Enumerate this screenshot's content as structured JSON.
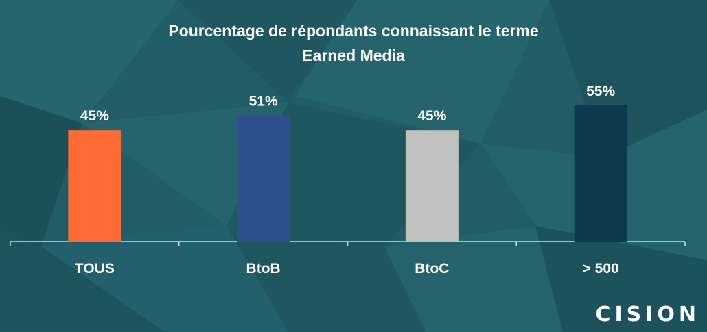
{
  "chart_data": {
    "type": "bar",
    "title_line1": "Pourcentage de répondants connaissant le terme",
    "title_line2": "Earned Media",
    "categories": [
      "TOUS",
      "BtoB",
      "BtoC",
      "> 500"
    ],
    "values": [
      45,
      51,
      45,
      55
    ],
    "value_labels": [
      "45%",
      "51%",
      "45%",
      "55%"
    ],
    "bar_colors": [
      "#ff6b35",
      "#2e5090",
      "#c0c0c0",
      "#0f3a4e"
    ],
    "ylim": [
      0,
      100
    ],
    "xlabel": "",
    "ylabel": "",
    "grid": false,
    "legend": "none"
  },
  "brand": {
    "logo_text": "CISION",
    "accent": "#f26b2b"
  }
}
